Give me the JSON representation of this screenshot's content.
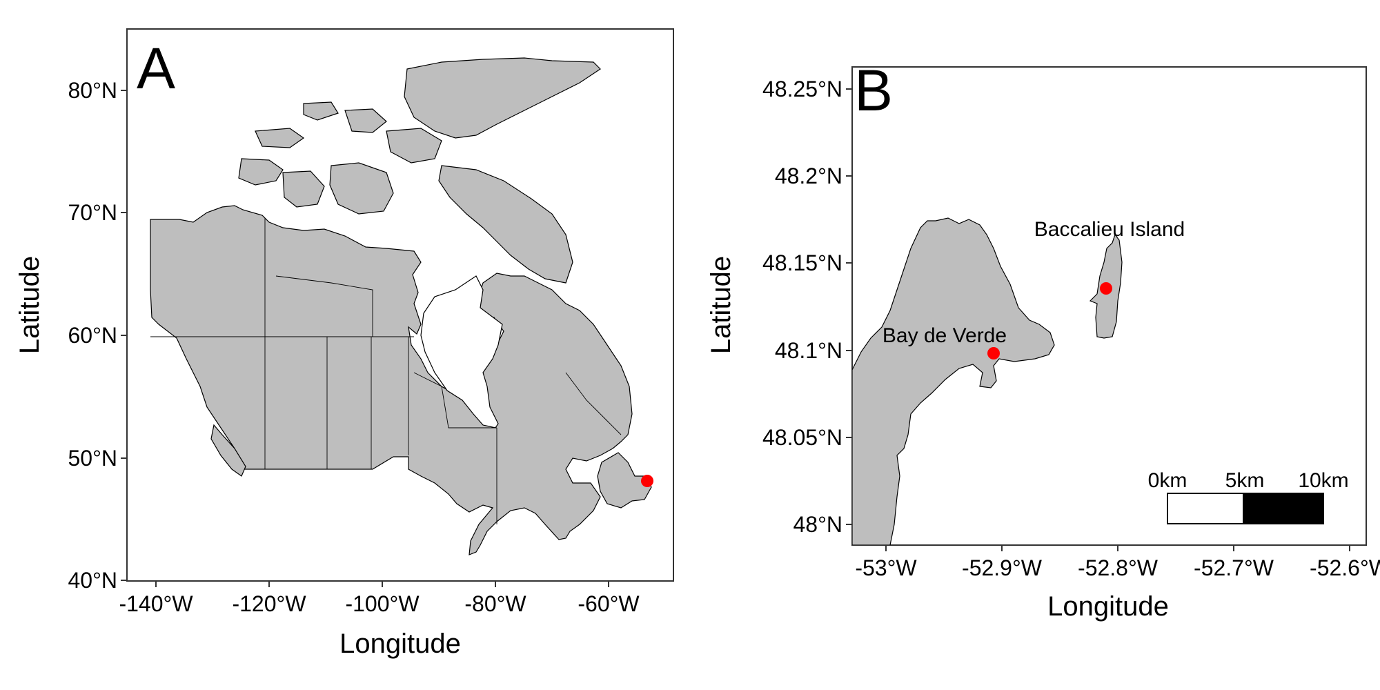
{
  "panel_a": {
    "letter": "A",
    "xlabel": "Longitude",
    "ylabel": "Latitude",
    "x_ticks": [
      "-140°W",
      "-120°W",
      "-100°W",
      "-80°W",
      "-60°W"
    ],
    "y_ticks": [
      "40°N",
      "50°N",
      "60°N",
      "70°N",
      "80°N"
    ],
    "land_color": "#bebebe",
    "point_color": "#ff0000"
  },
  "panel_b": {
    "letter": "B",
    "xlabel": "Longitude",
    "ylabel": "Latitude",
    "x_ticks": [
      "-53°W",
      "-52.9°W",
      "-52.8°W",
      "-52.7°W",
      "-52.6°W"
    ],
    "y_ticks": [
      "48°N",
      "48.05°N",
      "48.1°N",
      "48.15°N",
      "48.2°N",
      "48.25°N"
    ],
    "places": [
      {
        "label": "Baccalieu Island",
        "lon": -52.8,
        "lat": 48.135
      },
      {
        "label": "Bay de Verde",
        "lon": -52.897,
        "lat": 48.098
      }
    ],
    "scale_bar": {
      "labels": [
        "0km",
        "5km",
        "10km"
      ]
    },
    "land_color": "#bebebe",
    "point_color": "#ff0000"
  },
  "chart_data": [
    {
      "type": "map",
      "panel": "A",
      "xlabel": "Longitude",
      "ylabel": "Latitude",
      "xlim": [
        -145,
        -48
      ],
      "ylim": [
        39.5,
        85
      ],
      "points": [
        {
          "lon": -52.9,
          "lat": 48.1
        }
      ]
    },
    {
      "type": "map",
      "panel": "B",
      "xlabel": "Longitude",
      "ylabel": "Latitude",
      "xlim": [
        -53.02,
        -52.58
      ],
      "ylim": [
        47.99,
        48.26
      ],
      "points": [
        {
          "name": "Baccalieu Island",
          "lon": -52.8,
          "lat": 48.135
        },
        {
          "name": "Bay de Verde",
          "lon": -52.897,
          "lat": 48.098
        }
      ]
    }
  ]
}
